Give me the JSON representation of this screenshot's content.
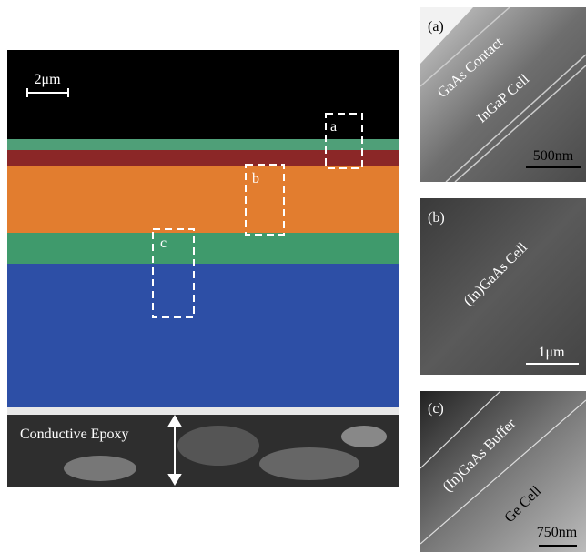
{
  "main": {
    "scale": "2μm",
    "boxes": [
      "a",
      "b",
      "c"
    ],
    "epoxy_label": "Conductive Epoxy"
  },
  "insets": [
    {
      "label": "(a)",
      "texts": [
        "GaAs Contact",
        "InGaP Cell"
      ],
      "scale": "500nm"
    },
    {
      "label": "(b)",
      "texts": [
        "(In)GaAs Cell"
      ],
      "scale": "1μm"
    },
    {
      "label": "(c)",
      "texts": [
        "(In)GaAs Buffer",
        "Ge Cell"
      ],
      "scale": "750nm"
    }
  ]
}
